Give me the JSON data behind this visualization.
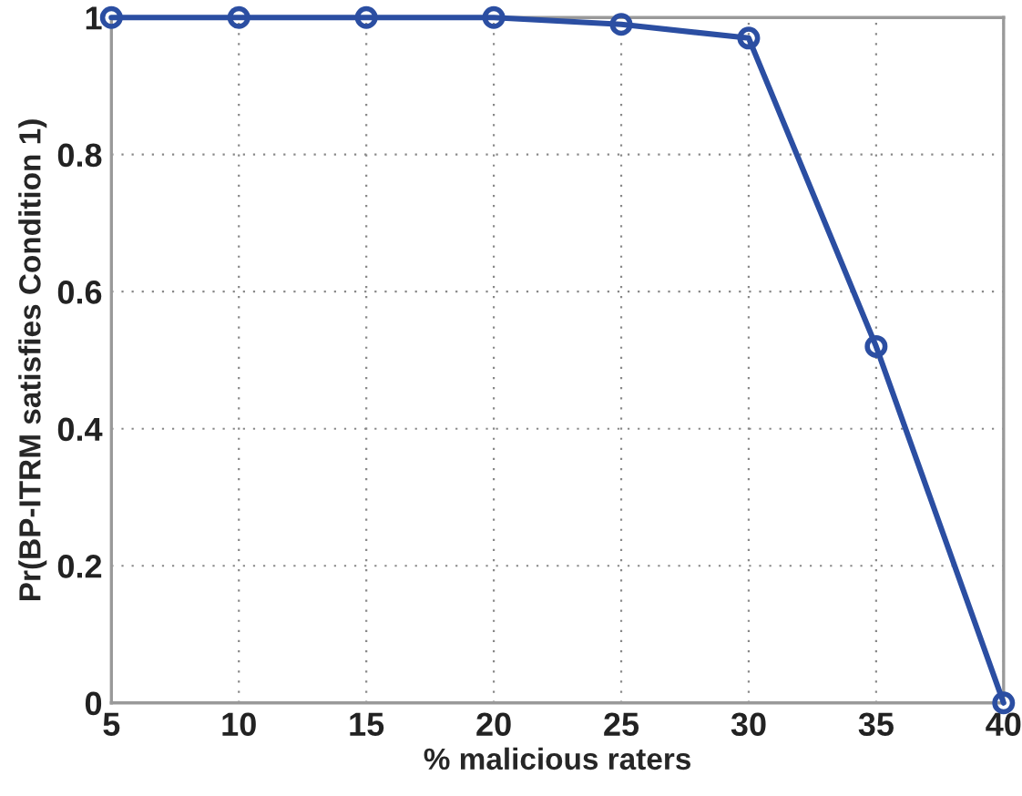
{
  "chart_data": {
    "type": "line",
    "xlabel": "% malicious raters",
    "ylabel": "Pr(BP-ITRM satisfies Condition 1)",
    "x": [
      5,
      10,
      15,
      20,
      25,
      30,
      35,
      40
    ],
    "series": [
      {
        "color": "#2b4ea2",
        "values": [
          1,
          1,
          1,
          1,
          0.99,
          0.97,
          0.52,
          0
        ]
      }
    ],
    "xlim": [
      5,
      40
    ],
    "xticks": [
      5,
      10,
      15,
      20,
      25,
      30,
      35,
      40
    ],
    "ylim": [
      0,
      1
    ],
    "yticks": [
      0,
      0.2,
      0.4,
      0.6,
      0.8,
      1
    ],
    "grid": true,
    "marker": "circle",
    "line_style": "solid"
  }
}
